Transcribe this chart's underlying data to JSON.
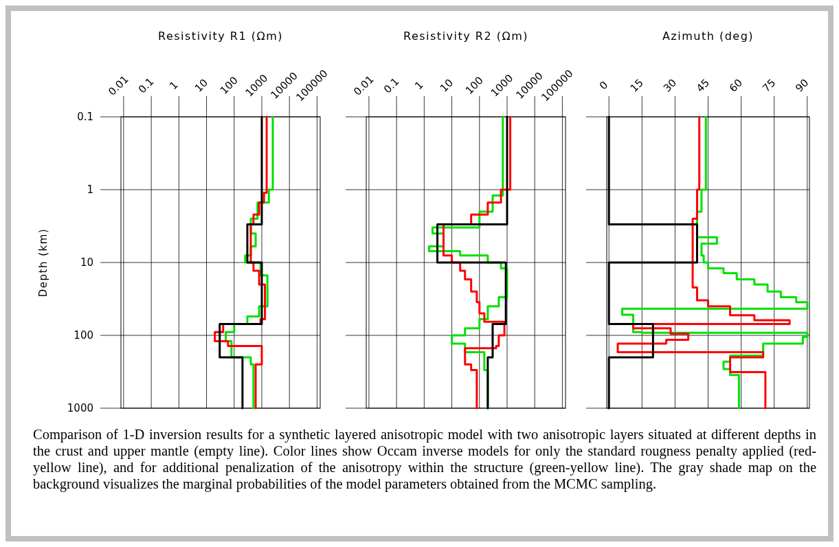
{
  "chart_data": [
    {
      "type": "line",
      "xlabel": "Resistivity R1 (Ωm)",
      "ylabel": "Depth (km)",
      "log": "xy",
      "grid": true,
      "xlim": [
        0.008,
        130000
      ],
      "xticks": [
        0.01,
        0.1,
        1,
        10,
        100,
        1000,
        10000,
        100000
      ],
      "ylim": [
        1000,
        0.1
      ],
      "yticks": [
        0.1,
        1,
        10,
        100,
        1000
      ],
      "annotations": [
        "Comparison of 1-D inversion results for a synthetic layered anisotropic model with two anisotropic layers situated at different depths in the crust and upper mantle (empty line). Color lines show Occam inverse models for only the standard rougness penalty applied (red-yellow line), and for additional penalization of the anisotropy within the structure (green-yellow line). The gray shade map on the background visualizes the marginal probabilities of the model parameters obtained from the MCMC sampling."
      ],
      "series": [
        {
          "color": "#00e000",
          "x": [
            2500,
            2500,
            1800,
            1800,
            700,
            700,
            400,
            400,
            600,
            600,
            400,
            400,
            250,
            250,
            900,
            900,
            1600,
            1600,
            800,
            800,
            300,
            300,
            100,
            100,
            50,
            50,
            80,
            80,
            400,
            400,
            500,
            500
          ],
          "values": [
            0.1,
            1,
            1,
            1.5,
            1.5,
            2.5,
            2.5,
            4,
            4,
            6,
            6,
            8,
            8,
            10,
            10,
            15,
            15,
            40,
            40,
            55,
            55,
            70,
            70,
            90,
            90,
            120,
            120,
            200,
            200,
            250,
            250,
            1000
          ]
        },
        {
          "color": "#ff0000",
          "x": [
            1500,
            1500,
            1200,
            1200,
            800,
            800,
            500,
            500,
            400,
            400,
            500,
            500,
            800,
            800,
            1300,
            1300,
            900,
            900,
            40,
            40,
            20,
            20,
            60,
            60,
            1000,
            1000,
            600,
            600
          ],
          "values": [
            0.1,
            1.1,
            1.1,
            1.5,
            1.5,
            2.2,
            2.2,
            3,
            3,
            10,
            10,
            13,
            13,
            20,
            20,
            60,
            60,
            70,
            70,
            90,
            90,
            120,
            120,
            140,
            140,
            250,
            250,
            1000
          ]
        },
        {
          "color": "#000000",
          "x": [
            1000,
            1000,
            300,
            300,
            1000,
            1000,
            30,
            30,
            200,
            200
          ],
          "values": [
            0.1,
            3,
            3,
            10,
            10,
            70,
            70,
            200,
            200,
            1000
          ]
        }
      ]
    },
    {
      "type": "line",
      "xlabel": "Resistivity R2 (Ωm)",
      "log": "xy",
      "grid": true,
      "tick_labels": "x",
      "xlim": [
        0.008,
        130000
      ],
      "xticks": [
        0.01,
        0.1,
        1,
        10,
        100,
        1000,
        10000,
        100000
      ],
      "ylim": [
        1000,
        0.1
      ],
      "yticks": [
        0.1,
        1,
        10,
        100,
        1000
      ],
      "series": [
        {
          "color": "#00e000",
          "x": [
            700,
            700,
            300,
            300,
            100,
            100,
            2,
            2,
            5,
            5,
            1.5,
            1.5,
            20,
            20,
            200,
            200,
            600,
            600,
            1000,
            1000,
            500,
            500,
            200,
            200,
            100,
            100,
            30,
            30,
            10,
            10,
            30,
            30,
            150,
            150,
            200,
            200
          ],
          "values": [
            0.1,
            1.2,
            1.2,
            2,
            2,
            3.3,
            3.3,
            4,
            4,
            6,
            6,
            7,
            7,
            8,
            8,
            10,
            10,
            12,
            12,
            30,
            30,
            40,
            40,
            60,
            60,
            80,
            80,
            100,
            100,
            130,
            130,
            170,
            170,
            300,
            300,
            1000
          ]
        },
        {
          "color": "#ff0000",
          "x": [
            1300,
            1300,
            600,
            600,
            200,
            200,
            50,
            50,
            5,
            5,
            10,
            10,
            20,
            20,
            30,
            30,
            50,
            50,
            80,
            80,
            100,
            100,
            150,
            150,
            800,
            800,
            500,
            500,
            400,
            400,
            30,
            30,
            50,
            50,
            80,
            80
          ],
          "values": [
            0.1,
            1,
            1,
            1.5,
            1.5,
            2.2,
            2.2,
            3,
            3,
            8,
            8,
            10,
            10,
            13,
            13,
            17,
            17,
            25,
            25,
            35,
            35,
            50,
            50,
            65,
            65,
            100,
            100,
            140,
            140,
            150,
            150,
            250,
            250,
            300,
            300,
            1000
          ]
        },
        {
          "color": "#000000",
          "x": [
            1000,
            1000,
            3,
            3,
            900,
            900,
            300,
            300,
            200,
            200
          ],
          "values": [
            0.1,
            3,
            3,
            10,
            10,
            70,
            70,
            200,
            200,
            1000
          ]
        }
      ]
    },
    {
      "type": "line",
      "xlabel": "Azimuth (deg)",
      "log": "y",
      "grid": true,
      "tick_labels": "x",
      "xlim": [
        -1,
        91
      ],
      "xticks": [
        0,
        15,
        30,
        45,
        60,
        75,
        90
      ],
      "ylim": [
        1000,
        0.1
      ],
      "yticks": [
        0.1,
        1,
        10,
        100,
        1000
      ],
      "series": [
        {
          "color": "#00e000",
          "x": [
            44,
            44,
            42,
            42,
            40,
            40,
            49,
            49,
            42,
            42,
            43,
            43,
            45,
            45,
            52,
            52,
            58,
            58,
            66,
            66,
            72,
            72,
            78,
            78,
            85,
            85,
            90,
            90,
            6,
            6,
            11,
            11,
            15,
            15,
            90,
            90,
            88,
            88,
            70,
            70,
            55,
            55,
            52,
            52,
            55,
            55,
            59,
            59
          ],
          "values": [
            0.1,
            1,
            1,
            2,
            2,
            4.5,
            4.5,
            5.5,
            5.5,
            8,
            8,
            10,
            10,
            12,
            12,
            14,
            14,
            17,
            17,
            20,
            20,
            25,
            25,
            30,
            30,
            35,
            35,
            43,
            43,
            52,
            52,
            90,
            90,
            92,
            92,
            105,
            105,
            130,
            130,
            190,
            190,
            230,
            230,
            290,
            290,
            350,
            350,
            1000
          ]
        },
        {
          "color": "#ff0000",
          "x": [
            41,
            41,
            40,
            40,
            38,
            38,
            40,
            40,
            45,
            45,
            55,
            55,
            66,
            66,
            82,
            82,
            11,
            11,
            28,
            28,
            36,
            36,
            26,
            26,
            4,
            4,
            70,
            70,
            55,
            55,
            71,
            71
          ],
          "values": [
            0.1,
            1,
            1,
            2.5,
            2.5,
            22,
            22,
            33,
            33,
            40,
            40,
            53,
            53,
            62,
            62,
            70,
            70,
            80,
            80,
            95,
            95,
            115,
            115,
            130,
            130,
            170,
            170,
            200,
            200,
            320,
            320,
            1000
          ]
        },
        {
          "color": "#000000",
          "x": [
            0,
            0,
            40,
            40,
            0,
            0,
            20,
            20,
            0,
            0
          ],
          "values": [
            0.1,
            3,
            3,
            10,
            10,
            70,
            70,
            200,
            200,
            1000
          ]
        }
      ]
    }
  ]
}
